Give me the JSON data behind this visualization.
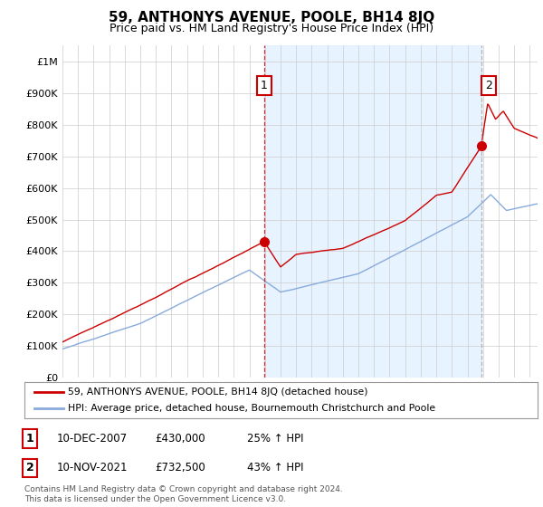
{
  "title": "59, ANTHONYS AVENUE, POOLE, BH14 8JQ",
  "subtitle": "Price paid vs. HM Land Registry's House Price Index (HPI)",
  "ylim": [
    0,
    1050000
  ],
  "yticks": [
    0,
    100000,
    200000,
    300000,
    400000,
    500000,
    600000,
    700000,
    800000,
    900000,
    1000000
  ],
  "ytick_labels": [
    "£0",
    "£100K",
    "£200K",
    "£300K",
    "£400K",
    "£500K",
    "£600K",
    "£700K",
    "£800K",
    "£900K",
    "£1M"
  ],
  "x_start_year": 1995,
  "x_end_year": 2025,
  "property_color": "#cc0000",
  "hpi_color": "#88aadd",
  "sale1_date": 2007.95,
  "sale1_price": 430000,
  "sale2_date": 2021.87,
  "sale2_price": 732500,
  "legend_property": "59, ANTHONYS AVENUE, POOLE, BH14 8JQ (detached house)",
  "legend_hpi": "HPI: Average price, detached house, Bournemouth Christchurch and Poole",
  "annotation1_date": "10-DEC-2007",
  "annotation1_price": "£430,000",
  "annotation1_hpi": "25% ↑ HPI",
  "annotation2_date": "10-NOV-2021",
  "annotation2_price": "£732,500",
  "annotation2_hpi": "43% ↑ HPI",
  "footer": "Contains HM Land Registry data © Crown copyright and database right 2024.\nThis data is licensed under the Open Government Licence v3.0.",
  "background_color": "#ffffff",
  "grid_color": "#cccccc",
  "shade_color": "#ddeeff"
}
